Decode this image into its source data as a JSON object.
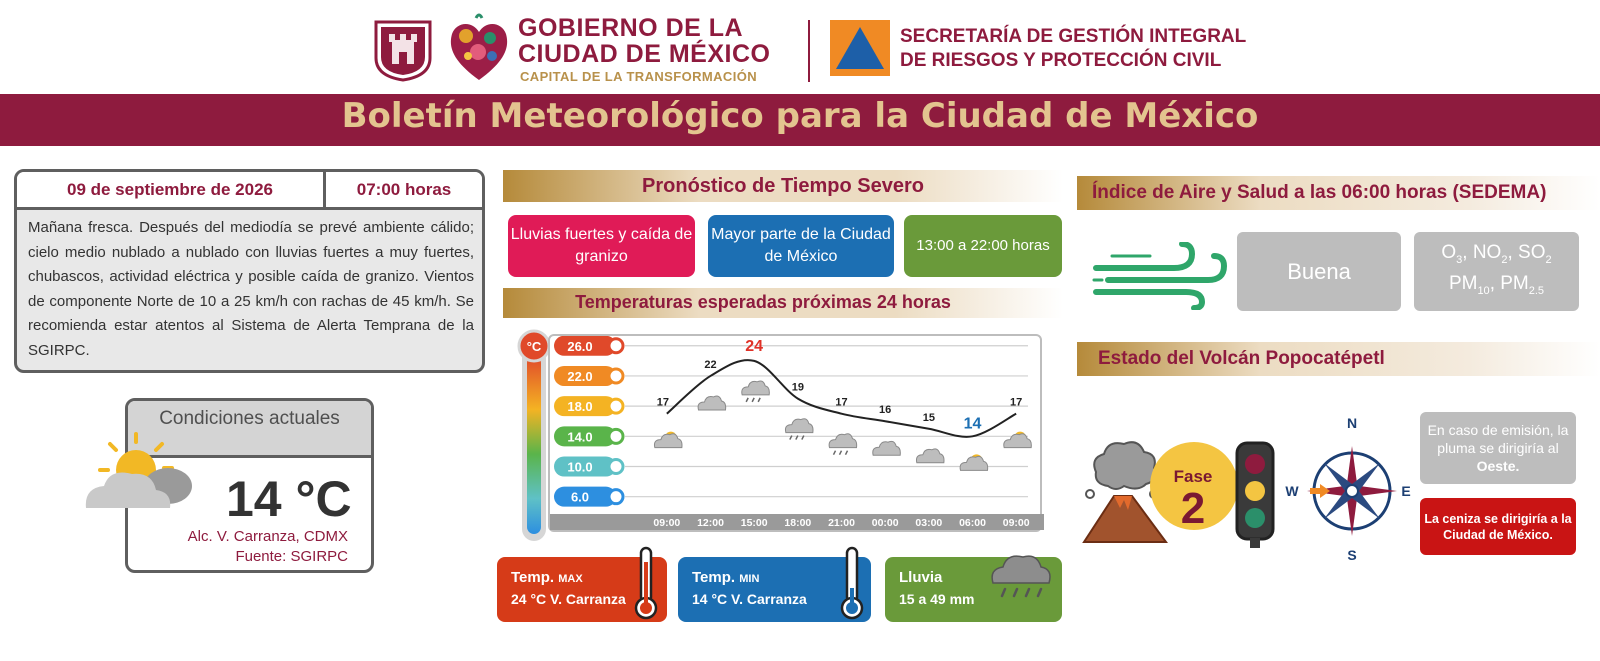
{
  "header": {
    "gov_line1": "GOBIERNO DE LA",
    "gov_line2": "CIUDAD DE MÉXICO",
    "gov_line3": "CAPITAL DE LA TRANSFORMACIÓN",
    "secretaria_line1": "SECRETARÍA DE GESTIÓN INTEGRAL",
    "secretaria_line2": "DE RIESGOS Y PROTECCIÓN CIVIL",
    "banner_title": "Boletín Meteorológico para la Ciudad de México"
  },
  "bulletin": {
    "date": "09 de septiembre de 2026",
    "time": "07:00 horas",
    "text": "Mañana fresca. Después del mediodía se prevé ambiente cálido; cielo medio nublado a nublado con lluvias fuertes a muy fuertes, chubascos, actividad eléctrica y posible caída de granizo. Vientos de componente Norte de 10 a 25 km/h con rachas de 45 km/h. Se recomienda estar atentos al Sistema de Alerta Temprana de la SGIRPC."
  },
  "current": {
    "title": "Condiciones actuales",
    "temperature": "14 °C",
    "location": "Alc. V. Carranza, CDMX",
    "source": "Fuente: SGIRPC"
  },
  "severe": {
    "title": "Pronóstico de Tiempo Severo",
    "event": "Lluvias fuertes y caída de granizo",
    "area": "Mayor parte de la Ciudad de México",
    "period": "13:00 a 22:00 horas"
  },
  "temps": {
    "title": "Temperaturas esperadas próximas 24 horas",
    "thermo_unit": "°C",
    "stats": {
      "max_label": "Temp.",
      "max_tag": "MAX",
      "max_value": "24 °C  V. Carranza",
      "min_label": "Temp.",
      "min_tag": "MIN",
      "min_value": "14 °C  V. Carranza",
      "rain_label": "Lluvia",
      "rain_value": "15 a 49 mm"
    }
  },
  "chart_data": {
    "type": "line",
    "title": "Temperaturas esperadas próximas 24 horas",
    "x": [
      "09:00",
      "12:00",
      "15:00",
      "18:00",
      "21:00",
      "00:00",
      "03:00",
      "06:00",
      "09:00"
    ],
    "values": [
      17,
      22,
      24,
      19,
      17,
      16,
      15,
      14,
      17
    ],
    "highlight": {
      "max_index": 2,
      "min_index": 7,
      "max_color": "#e03127",
      "min_color": "#1c6fb3"
    },
    "y_scale_labels": [
      "26.0",
      "22.0",
      "18.0",
      "14.0",
      "10.0",
      "6.0"
    ],
    "y_scale_values": [
      26,
      22,
      18,
      14,
      10,
      6
    ],
    "y_scale_colors": [
      "#e0492a",
      "#f08a24",
      "#f4b323",
      "#5ab44a",
      "#5fc1c6",
      "#2d8fe0"
    ],
    "ylim": [
      4.5,
      26.5
    ],
    "weather_icons": [
      "partly-sunny",
      "cloud",
      "storm-cloud",
      "storm-cloud",
      "storm-cloud",
      "cloud",
      "cloud",
      "partly-sunny",
      "partly-sunny"
    ],
    "grid": true
  },
  "air": {
    "title": "Índice de Aire y Salud a las 06:00 horas (SEDEMA)",
    "level": "Buena",
    "pollutants_line1_parts": [
      "O",
      "3",
      ", NO",
      "2",
      ", SO",
      "2"
    ],
    "pollutants_line2_parts": [
      "PM",
      "10",
      ", PM",
      "2.5"
    ]
  },
  "volcano": {
    "title": "Estado del Volcán Popocatépetl",
    "fase_label": "Fase",
    "fase_number": "2",
    "compass": {
      "n": "N",
      "s": "S",
      "e": "E",
      "w": "W"
    },
    "plume_text": "En caso de emisión, la pluma se dirigiría al",
    "plume_direction": "Oeste.",
    "ash_text": "La ceniza se dirigiría a la Ciudad de México."
  },
  "colors": {
    "brand": "#8e1b3e",
    "gold": "#e3c48f",
    "severe_red": "#e01b57",
    "blue": "#1c6fb3",
    "green": "#6a9a3a",
    "alert_red": "#c91414"
  }
}
